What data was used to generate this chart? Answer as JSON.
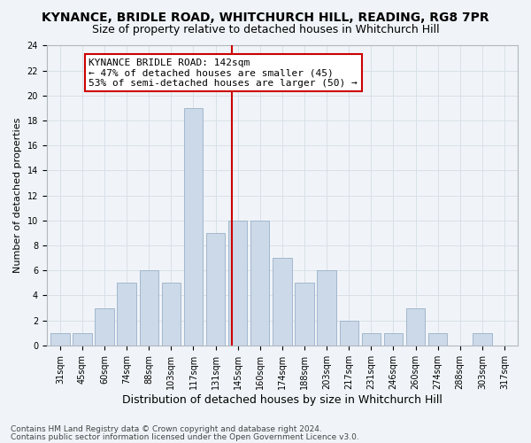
{
  "title": "KYNANCE, BRIDLE ROAD, WHITCHURCH HILL, READING, RG8 7PR",
  "subtitle": "Size of property relative to detached houses in Whitchurch Hill",
  "xlabel": "Distribution of detached houses by size in Whitchurch Hill",
  "ylabel": "Number of detached properties",
  "bar_labels": [
    "31sqm",
    "45sqm",
    "60sqm",
    "74sqm",
    "88sqm",
    "103sqm",
    "117sqm",
    "131sqm",
    "145sqm",
    "160sqm",
    "174sqm",
    "188sqm",
    "203sqm",
    "217sqm",
    "231sqm",
    "246sqm",
    "260sqm",
    "274sqm",
    "288sqm",
    "303sqm",
    "317sqm"
  ],
  "bar_heights": [
    1,
    1,
    3,
    5,
    6,
    5,
    19,
    9,
    10,
    10,
    7,
    5,
    6,
    2,
    1,
    1,
    3,
    1,
    0,
    1,
    0
  ],
  "bar_color": "#ccd9e8",
  "bar_edgecolor": "#9ab0c8",
  "grid_color": "#d8e0e8",
  "vline_x_index": 7.72,
  "vline_color": "#cc0000",
  "annotation_text": "KYNANCE BRIDLE ROAD: 142sqm\n← 47% of detached houses are smaller (45)\n53% of semi-detached houses are larger (50) →",
  "annotation_box_facecolor": "#ffffff",
  "annotation_box_edgecolor": "#cc0000",
  "ylim": [
    0,
    24
  ],
  "yticks": [
    0,
    2,
    4,
    6,
    8,
    10,
    12,
    14,
    16,
    18,
    20,
    22,
    24
  ],
  "footnote1": "Contains HM Land Registry data © Crown copyright and database right 2024.",
  "footnote2": "Contains public sector information licensed under the Open Government Licence v3.0.",
  "background_color": "#f0f4f8",
  "plot_background": "#f0f4f8",
  "title_fontsize": 10,
  "subtitle_fontsize": 9,
  "xlabel_fontsize": 9,
  "ylabel_fontsize": 8,
  "tick_fontsize": 7,
  "annotation_fontsize": 8,
  "footnote_fontsize": 6.5
}
